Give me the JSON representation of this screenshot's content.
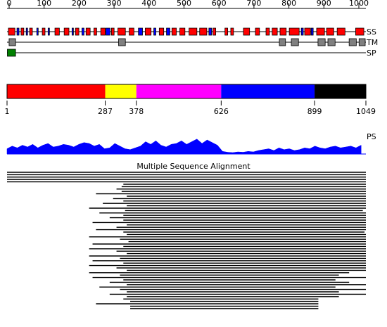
{
  "length": 1049,
  "ruler": {
    "ticks": [
      0,
      100,
      200,
      300,
      400,
      500,
      600,
      700,
      800,
      900,
      1000
    ]
  },
  "ss": {
    "label": "SS",
    "series": [
      {
        "color": "#ff0000",
        "segments": [
          [
            4,
            23
          ],
          [
            41,
            49
          ],
          [
            66,
            74
          ],
          [
            103,
            111
          ],
          [
            140,
            153
          ],
          [
            167,
            181
          ],
          [
            200,
            210
          ],
          [
            231,
            243
          ],
          [
            254,
            262
          ],
          [
            274,
            287
          ],
          [
            305,
            313
          ],
          [
            324,
            346
          ],
          [
            357,
            371
          ],
          [
            404,
            421
          ],
          [
            445,
            458
          ],
          [
            482,
            495
          ],
          [
            505,
            520
          ],
          [
            532,
            555
          ],
          [
            563,
            584
          ],
          [
            602,
            610
          ],
          [
            637,
            645
          ],
          [
            654,
            662
          ],
          [
            691,
            709
          ],
          [
            726,
            738
          ],
          [
            757,
            767
          ],
          [
            775,
            790
          ],
          [
            798,
            816
          ],
          [
            825,
            854
          ],
          [
            870,
            887
          ],
          [
            905,
            928
          ],
          [
            934,
            955
          ],
          [
            965,
            988
          ],
          [
            1019,
            1043
          ]
        ]
      },
      {
        "color": "#0000ff",
        "segments": [
          [
            29,
            35
          ],
          [
            56,
            60
          ],
          [
            87,
            91
          ],
          [
            120,
            124
          ],
          [
            190,
            194
          ],
          [
            219,
            225
          ],
          [
            289,
            301
          ],
          [
            384,
            396
          ],
          [
            429,
            435
          ],
          [
            466,
            476
          ],
          [
            590,
            598
          ],
          [
            860,
            866
          ],
          [
            889,
            895
          ]
        ]
      }
    ]
  },
  "tm": {
    "label": "TM",
    "color": "#808080",
    "segments": [
      [
        6,
        25
      ],
      [
        326,
        346
      ],
      [
        796,
        814
      ],
      [
        831,
        852
      ],
      [
        909,
        930
      ],
      [
        938,
        959
      ],
      [
        1000,
        1021
      ],
      [
        1029,
        1047
      ]
    ]
  },
  "sp": {
    "label": "SP",
    "color": "#008000",
    "segments": [
      [
        1,
        25
      ]
    ]
  },
  "domains": {
    "boundaries": [
      1,
      287,
      378,
      626,
      899,
      1049
    ],
    "colors": [
      "#ff0000",
      "#ffff00",
      "#ff00ff",
      "#0000ff",
      "#000000"
    ]
  },
  "ps": {
    "label": "PS",
    "color": "#0000ff",
    "ylim": [
      0,
      1
    ],
    "x": [
      0,
      15,
      30,
      45,
      60,
      75,
      90,
      105,
      120,
      135,
      150,
      165,
      180,
      195,
      210,
      225,
      240,
      255,
      270,
      285,
      300,
      315,
      330,
      345,
      360,
      375,
      390,
      405,
      420,
      435,
      450,
      465,
      480,
      495,
      510,
      525,
      540,
      555,
      570,
      585,
      600,
      615,
      630,
      645,
      660,
      675,
      690,
      705,
      720,
      735,
      750,
      765,
      780,
      795,
      810,
      825,
      840,
      855,
      870,
      885,
      900,
      915,
      930,
      945,
      960,
      975,
      990,
      1005,
      1020,
      1035
    ],
    "values": [
      0.3,
      0.45,
      0.35,
      0.5,
      0.4,
      0.55,
      0.35,
      0.5,
      0.6,
      0.4,
      0.45,
      0.55,
      0.5,
      0.4,
      0.55,
      0.65,
      0.6,
      0.45,
      0.55,
      0.3,
      0.35,
      0.6,
      0.45,
      0.3,
      0.25,
      0.35,
      0.45,
      0.7,
      0.55,
      0.75,
      0.5,
      0.4,
      0.55,
      0.6,
      0.75,
      0.55,
      0.7,
      0.85,
      0.6,
      0.8,
      0.65,
      0.5,
      0.15,
      0.1,
      0.08,
      0.12,
      0.1,
      0.15,
      0.12,
      0.2,
      0.25,
      0.3,
      0.2,
      0.35,
      0.25,
      0.3,
      0.2,
      0.25,
      0.35,
      0.3,
      0.45,
      0.35,
      0.3,
      0.4,
      0.45,
      0.35,
      0.4,
      0.45,
      0.35,
      0.5
    ]
  },
  "msa": {
    "title": "Multiple Sequence Alignment",
    "rows": [
      [
        1,
        1049
      ],
      [
        1,
        1049
      ],
      [
        1,
        1049
      ],
      [
        1,
        1049
      ],
      [
        1,
        1049
      ],
      [
        340,
        1049
      ],
      [
        335,
        1049
      ],
      [
        320,
        1049
      ],
      [
        335,
        1049
      ],
      [
        260,
        1049
      ],
      [
        350,
        1049
      ],
      [
        310,
        1049
      ],
      [
        340,
        1049
      ],
      [
        280,
        1049
      ],
      [
        350,
        1049
      ],
      [
        240,
        1049
      ],
      [
        345,
        1040
      ],
      [
        270,
        1049
      ],
      [
        340,
        1049
      ],
      [
        300,
        1049
      ],
      [
        340,
        1049
      ],
      [
        250,
        1049
      ],
      [
        350,
        1049
      ],
      [
        320,
        1049
      ],
      [
        260,
        1049
      ],
      [
        340,
        1045
      ],
      [
        350,
        1049
      ],
      [
        240,
        1049
      ],
      [
        330,
        1049
      ],
      [
        355,
        1049
      ],
      [
        250,
        1049
      ],
      [
        340,
        1049
      ],
      [
        240,
        1049
      ],
      [
        320,
        1049
      ],
      [
        350,
        1049
      ],
      [
        240,
        1049
      ],
      [
        330,
        1049
      ],
      [
        250,
        1049
      ],
      [
        340,
        1049
      ],
      [
        240,
        1049
      ],
      [
        320,
        1049
      ],
      [
        350,
        1049
      ],
      [
        240,
        1000
      ],
      [
        330,
        970
      ],
      [
        250,
        1049
      ],
      [
        340,
        960
      ],
      [
        300,
        1000
      ],
      [
        350,
        1049
      ],
      [
        270,
        960
      ],
      [
        330,
        1049
      ],
      [
        350,
        970
      ],
      [
        300,
        1049
      ],
      [
        350,
        970
      ],
      [
        340,
        910
      ],
      [
        360,
        910
      ],
      [
        260,
        910
      ],
      [
        360,
        910
      ],
      [
        360,
        910
      ]
    ]
  }
}
